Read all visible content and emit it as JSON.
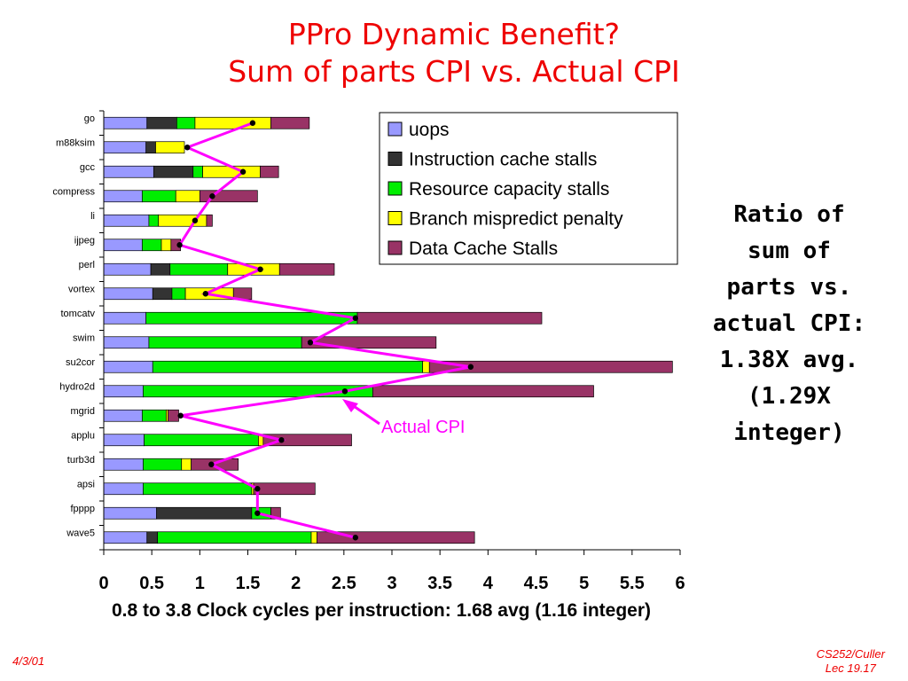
{
  "slide": {
    "title_line1": "PPro Dynamic Benefit?",
    "title_line2": "Sum of parts CPI vs. Actual CPI",
    "side_note": "Ratio  of\nsum of\nparts vs.\nactual CPI:\n1.38X avg.\n(1.29X\ninteger)",
    "footer_date": "4/3/01",
    "footer_course": "CS252/Culler",
    "footer_lecture": "Lec 19.17"
  },
  "chart_data": {
    "type": "bar",
    "orientation": "horizontal",
    "stacked": true,
    "xlabel": "0.8 to 3.8 Clock cycles per instruction: 1.68 avg (1.16 integer)",
    "xlim": [
      0,
      6
    ],
    "x_ticks": [
      "0",
      "0.5",
      "1",
      "1.5",
      "2",
      "2.5",
      "3",
      "3.5",
      "4",
      "4.5",
      "5",
      "5.5",
      "6"
    ],
    "categories": [
      "go",
      "m88ksim",
      "gcc",
      "compress",
      "li",
      "ijpeg",
      "perl",
      "vortex",
      "tomcatv",
      "swim",
      "su2cor",
      "hydro2d",
      "mgrid",
      "applu",
      "turb3d",
      "apsi",
      "fpppp",
      "wave5"
    ],
    "legend_position": "top-right",
    "series": [
      {
        "name": "uops",
        "color": "#9999ff",
        "values": [
          0.45,
          0.44,
          0.52,
          0.4,
          0.47,
          0.4,
          0.49,
          0.51,
          0.44,
          0.47,
          0.51,
          0.41,
          0.4,
          0.42,
          0.41,
          0.41,
          0.55,
          0.45
        ]
      },
      {
        "name": "Instruction cache stalls",
        "color": "#333333",
        "values": [
          0.31,
          0.1,
          0.41,
          0.0,
          0.0,
          0.0,
          0.2,
          0.2,
          0.0,
          0.0,
          0.0,
          0.0,
          0.0,
          0.0,
          0.0,
          0.0,
          0.99,
          0.11
        ]
      },
      {
        "name": "Resource capacity stalls",
        "color": "#00ee00",
        "values": [
          0.19,
          0.0,
          0.1,
          0.35,
          0.1,
          0.2,
          0.6,
          0.14,
          2.2,
          1.59,
          2.81,
          2.39,
          0.25,
          1.19,
          0.4,
          1.13,
          0.2,
          1.6
        ]
      },
      {
        "name": "Branch mispredict penalty",
        "color": "#ffff00",
        "values": [
          0.79,
          0.3,
          0.6,
          0.25,
          0.5,
          0.1,
          0.54,
          0.5,
          0.0,
          0.0,
          0.07,
          0.0,
          0.02,
          0.05,
          0.1,
          0.02,
          0.0,
          0.06
        ]
      },
      {
        "name": "Data Cache Stalls",
        "color": "#993366",
        "values": [
          0.4,
          0.0,
          0.19,
          0.6,
          0.06,
          0.1,
          0.57,
          0.19,
          1.92,
          1.4,
          2.53,
          2.3,
          0.11,
          0.92,
          0.49,
          0.64,
          0.1,
          1.64
        ]
      }
    ],
    "actual_cpi": {
      "label": "Actual CPI",
      "color": "#ff00ff",
      "values": [
        1.55,
        0.87,
        1.45,
        1.13,
        0.95,
        0.79,
        1.63,
        1.06,
        2.62,
        2.15,
        3.82,
        2.51,
        0.8,
        1.85,
        1.12,
        1.6,
        1.6,
        2.62
      ]
    }
  }
}
